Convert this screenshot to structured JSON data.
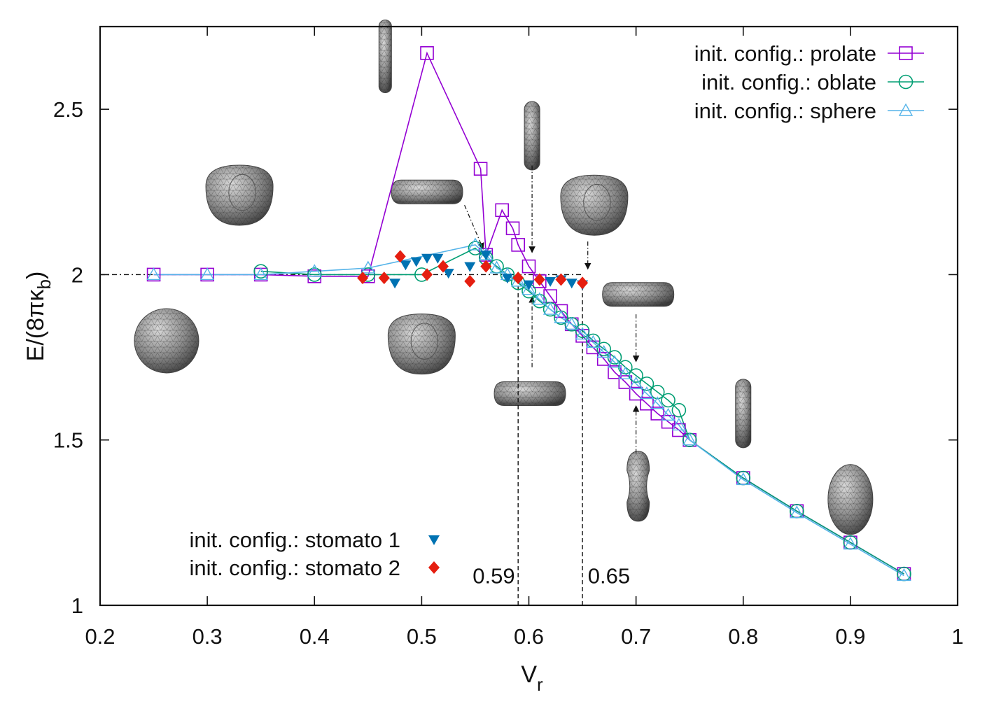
{
  "chart_data": {
    "type": "scatter",
    "title": "",
    "xlabel": "V",
    "xlabel_sub": "r",
    "ylabel": "E/(8πκ",
    "ylabel_sub": "b",
    "ylabel_close": ")",
    "xlim": [
      0.2,
      1.0
    ],
    "ylim": [
      1.0,
      2.75
    ],
    "xticks": [
      0.2,
      0.3,
      0.4,
      0.5,
      0.6,
      0.7,
      0.8,
      0.9,
      1.0
    ],
    "xtick_labels": [
      "0.2",
      "0.3",
      "0.4",
      "0.5",
      "0.6",
      "0.7",
      "0.8",
      "0.9",
      "1"
    ],
    "yticks": [
      1.0,
      1.5,
      2.0,
      2.5
    ],
    "ytick_labels": [
      "1",
      "1.5",
      "2",
      "2.5"
    ],
    "grid": false,
    "legend_top": [
      {
        "label": "init. config.: prolate",
        "series": "prolate"
      },
      {
        "label": "init. config.:  oblate",
        "series": "oblate"
      },
      {
        "label": "init. config.: sphere",
        "series": "sphere"
      }
    ],
    "legend_bottom": [
      {
        "label": "init. config.: stomato 1",
        "series": "stomato1"
      },
      {
        "label": "init. config.: stomato 2",
        "series": "stomato2"
      }
    ],
    "series": [
      {
        "name": "init. config.: prolate",
        "key": "prolate",
        "color": "#9400d3",
        "marker": "square",
        "line": true,
        "x": [
          0.25,
          0.3,
          0.35,
          0.4,
          0.45,
          0.505,
          0.555,
          0.56,
          0.575,
          0.585,
          0.59,
          0.6,
          0.61,
          0.62,
          0.63,
          0.64,
          0.65,
          0.66,
          0.67,
          0.68,
          0.69,
          0.7,
          0.71,
          0.72,
          0.73,
          0.74,
          0.75,
          0.8,
          0.85,
          0.9,
          0.95
        ],
        "y": [
          2.0,
          2.0,
          2.0,
          1.995,
          1.995,
          2.67,
          2.32,
          2.06,
          2.195,
          2.14,
          2.09,
          2.025,
          1.98,
          1.935,
          1.89,
          1.85,
          1.815,
          1.78,
          1.745,
          1.705,
          1.675,
          1.64,
          1.61,
          1.58,
          1.555,
          1.53,
          1.5,
          1.385,
          1.285,
          1.19,
          1.095
        ]
      },
      {
        "name": "init. config.:  oblate",
        "key": "oblate",
        "color": "#009e73",
        "marker": "circle",
        "line": true,
        "x": [
          0.35,
          0.4,
          0.45,
          0.5,
          0.55,
          0.56,
          0.57,
          0.58,
          0.59,
          0.6,
          0.61,
          0.62,
          0.63,
          0.64,
          0.65,
          0.66,
          0.67,
          0.68,
          0.69,
          0.7,
          0.71,
          0.72,
          0.73,
          0.74,
          0.75,
          0.8,
          0.85,
          0.9,
          0.95
        ],
        "y": [
          2.01,
          2.0,
          2.0,
          2.0,
          2.08,
          2.05,
          2.025,
          2.0,
          1.975,
          1.95,
          1.92,
          1.895,
          1.87,
          1.85,
          1.83,
          1.8,
          1.775,
          1.75,
          1.72,
          1.695,
          1.67,
          1.645,
          1.62,
          1.59,
          1.5,
          1.385,
          1.285,
          1.19,
          1.095
        ]
      },
      {
        "name": "init. config.: sphere",
        "key": "sphere",
        "color": "#56b4e9",
        "marker": "triangle",
        "line": true,
        "x": [
          0.25,
          0.3,
          0.35,
          0.4,
          0.45,
          0.55,
          0.56,
          0.57,
          0.58,
          0.59,
          0.6,
          0.61,
          0.62,
          0.63,
          0.64,
          0.65,
          0.66,
          0.67,
          0.68,
          0.69,
          0.7,
          0.71,
          0.72,
          0.73,
          0.74,
          0.75,
          0.8,
          0.85,
          0.9,
          0.95
        ],
        "y": [
          2.0,
          2.0,
          2.0,
          2.01,
          2.02,
          2.09,
          2.06,
          2.02,
          2.0,
          1.98,
          1.955,
          1.925,
          1.895,
          1.87,
          1.85,
          1.82,
          1.795,
          1.765,
          1.735,
          1.7,
          1.67,
          1.64,
          1.61,
          1.575,
          1.545,
          1.5,
          1.38,
          1.28,
          1.185,
          1.09
        ]
      },
      {
        "name": "init. config.: stomato 1",
        "key": "stomato1",
        "color": "#0072b2",
        "marker": "triangle-down",
        "line": false,
        "x": [
          0.475,
          0.485,
          0.495,
          0.505,
          0.515,
          0.525,
          0.545,
          0.56,
          0.58,
          0.6,
          0.62,
          0.63,
          0.64,
          0.65
        ],
        "y": [
          1.975,
          2.03,
          2.04,
          2.05,
          2.05,
          2.005,
          2.025,
          2.06,
          1.99,
          1.97,
          1.98,
          1.985,
          1.975,
          1.97
        ]
      },
      {
        "name": "init. config.: stomato 2",
        "key": "stomato2",
        "color": "#e51e10",
        "marker": "diamond",
        "line": false,
        "x": [
          0.445,
          0.465,
          0.48,
          0.505,
          0.52,
          0.545,
          0.56,
          0.59,
          0.61,
          0.63,
          0.65
        ],
        "y": [
          1.99,
          1.99,
          2.055,
          2.0,
          2.025,
          1.98,
          2.025,
          1.99,
          1.985,
          1.985,
          1.975
        ]
      }
    ],
    "reference_lines": [
      {
        "orientation": "horizontal",
        "y": 2.0,
        "x_from": 0.2,
        "x_to": 0.65,
        "style": "dash-dot"
      },
      {
        "orientation": "vertical",
        "x": 0.59,
        "y_from": 1.0,
        "y_to": 2.0,
        "style": "dashed"
      },
      {
        "orientation": "vertical",
        "x": 0.65,
        "y_from": 1.0,
        "y_to": 1.98,
        "style": "dashed"
      }
    ],
    "annotations": [
      {
        "text": "0.59",
        "x": 0.587,
        "y": 1.09
      },
      {
        "text": "0.65",
        "x": 0.655,
        "y": 1.09
      }
    ],
    "shape_insets": [
      {
        "shape": "sphere",
        "x": 0.262,
        "y": 1.8
      },
      {
        "shape": "stomatocyte",
        "x": 0.33,
        "y": 2.24
      },
      {
        "shape": "stomatocyte",
        "x": 0.5,
        "y": 1.79
      },
      {
        "shape": "long-prolate",
        "x": 0.466,
        "y": 2.66
      },
      {
        "shape": "discocyte",
        "x": 0.505,
        "y": 2.25
      },
      {
        "shape": "prolate",
        "x": 0.603,
        "y": 2.42
      },
      {
        "shape": "stomatocyte",
        "x": 0.661,
        "y": 2.21
      },
      {
        "shape": "discocyte",
        "x": 0.601,
        "y": 1.64
      },
      {
        "shape": "discocyte",
        "x": 0.702,
        "y": 1.94
      },
      {
        "shape": "dumbbell",
        "x": 0.702,
        "y": 1.36
      },
      {
        "shape": "prolate",
        "x": 0.8,
        "y": 1.58
      },
      {
        "shape": "ellipsoid",
        "x": 0.9,
        "y": 1.32
      }
    ],
    "inset_arrows": [
      {
        "x1": 0.54,
        "y1": 2.21,
        "x2": 0.557,
        "y2": 2.08
      },
      {
        "x1": 0.603,
        "y1": 2.33,
        "x2": 0.603,
        "y2": 2.07
      },
      {
        "x1": 0.655,
        "y1": 2.1,
        "x2": 0.655,
        "y2": 2.02
      },
      {
        "x1": 0.603,
        "y1": 1.72,
        "x2": 0.603,
        "y2": 1.93
      },
      {
        "x1": 0.7,
        "y1": 1.88,
        "x2": 0.7,
        "y2": 1.74
      },
      {
        "x1": 0.7,
        "y1": 1.46,
        "x2": 0.7,
        "y2": 1.6
      }
    ]
  }
}
